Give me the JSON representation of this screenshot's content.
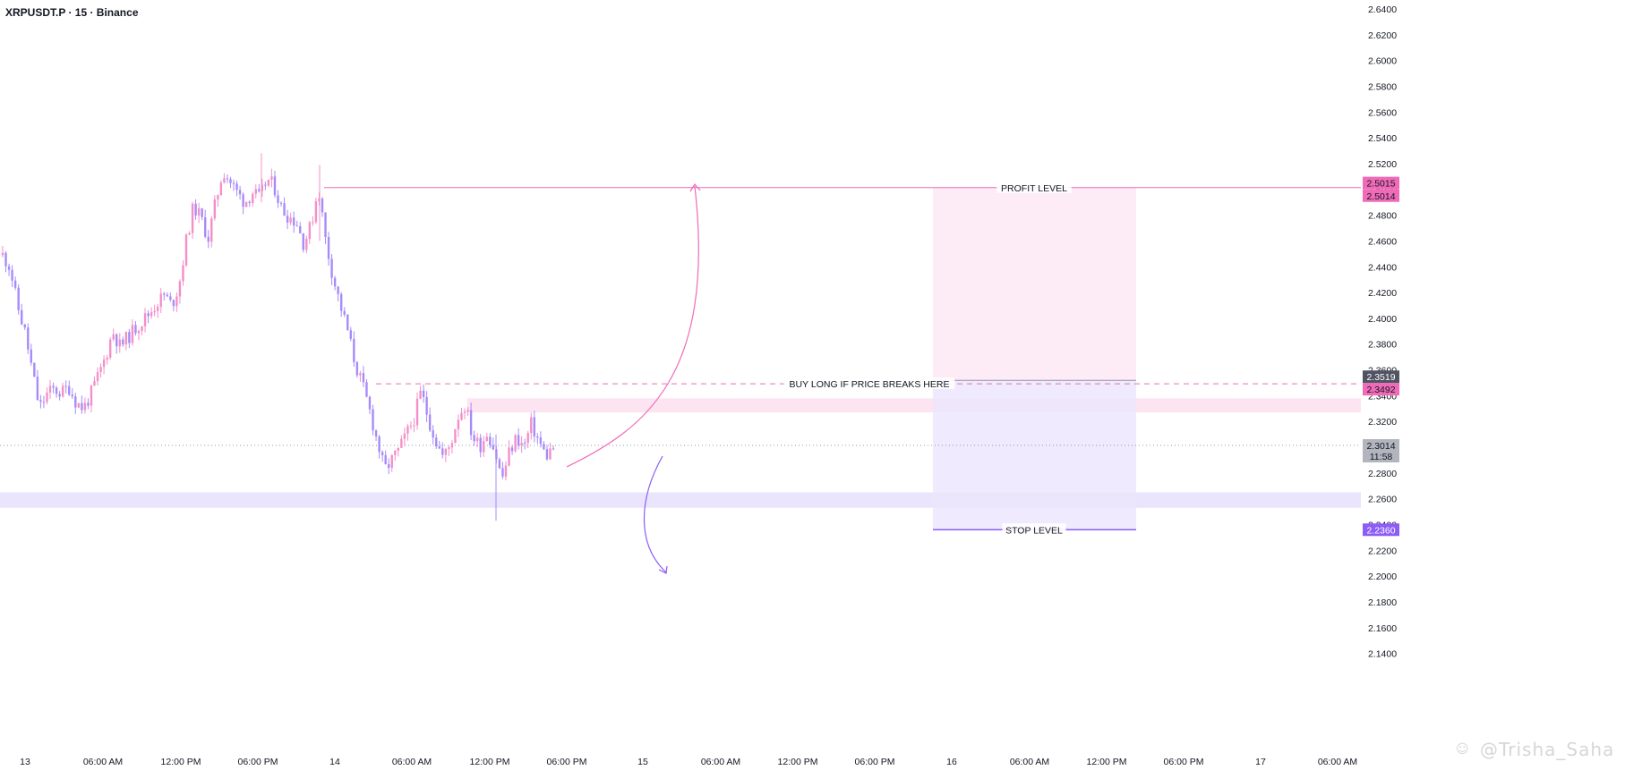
{
  "header": {
    "title": "XRPUSDT.P · 15 · Binance"
  },
  "watermark": {
    "text": "@Trisha_Saha",
    "icon": "community-icon"
  },
  "chart_data": {
    "type": "candlestick",
    "symbol": "XRPUSDT.P",
    "interval": "15",
    "exchange": "Binance",
    "ylim": [
      2.13,
      2.65
    ],
    "y_ticks": [
      "2.6400",
      "2.6200",
      "2.6000",
      "2.5800",
      "2.5600",
      "2.5400",
      "2.5200",
      "2.5000",
      "2.4800",
      "2.4600",
      "2.4400",
      "2.4200",
      "2.4000",
      "2.3800",
      "2.3600",
      "2.3400",
      "2.3200",
      "2.3000",
      "2.2800",
      "2.2600",
      "2.2400",
      "2.2200",
      "2.2000",
      "2.1800",
      "2.1600",
      "2.1400"
    ],
    "x_ticks": [
      "13",
      "06:00 AM",
      "12:00 PM",
      "06:00 PM",
      "14",
      "06:00 AM",
      "12:00 PM",
      "06:00 PM",
      "15",
      "06:00 AM",
      "12:00 PM",
      "06:00 PM",
      "16",
      "06:00 AM",
      "12:00 PM",
      "06:00 PM",
      "17",
      "06:00 AM"
    ],
    "price_path": [
      2.449,
      2.44,
      2.41,
      2.39,
      2.36,
      2.33,
      2.341,
      2.345,
      2.342,
      2.347,
      2.335,
      2.33,
      2.341,
      2.355,
      2.37,
      2.39,
      2.378,
      2.385,
      2.392,
      2.398,
      2.404,
      2.412,
      2.418,
      2.41,
      2.425,
      2.46,
      2.487,
      2.478,
      2.462,
      2.49,
      2.515,
      2.506,
      2.497,
      2.49,
      2.498,
      2.493,
      2.508,
      2.502,
      2.485,
      2.479,
      2.475,
      2.458,
      2.472,
      2.502,
      2.46,
      2.432,
      2.41,
      2.39,
      2.365,
      2.348,
      2.328,
      2.305,
      2.282,
      2.29,
      2.298,
      2.31,
      2.322,
      2.343,
      2.322,
      2.305,
      2.292,
      2.302,
      2.324,
      2.333,
      2.308,
      2.301,
      2.312,
      2.298,
      2.275,
      2.296,
      2.308,
      2.3,
      2.318,
      2.305,
      2.293,
      2.3
    ],
    "current_price": "2.3014",
    "countdown": "11:58",
    "levels": {
      "profit": {
        "label": "PROFIT LEVEL",
        "price": 2.5014,
        "tag": "2.5014"
      },
      "profit_alt": {
        "price": 2.5015,
        "tag": "2.5015"
      },
      "entry": {
        "label": "BUY LONG IF PRICE BREAKS HERE",
        "price": 2.3492,
        "tag": "2.3492"
      },
      "entry_alt": {
        "price": 2.3519,
        "tag": "2.3519"
      },
      "stop": {
        "label": "STOP LEVEL",
        "price": 2.236,
        "tag": "2.2360"
      }
    },
    "zones": [
      {
        "name": "resistance-zone",
        "from": 2.327,
        "to": 2.338
      },
      {
        "name": "support-zone",
        "from": 2.253,
        "to": 2.265
      }
    ],
    "colors": {
      "up": "#f48fc8",
      "down": "#a78bfa",
      "profit": "#f06ab7",
      "stop": "#8b5cf6",
      "profit_zone": "#fde7f3",
      "stop_zone": "#ece6fd",
      "resistance_zone": "#fce4f1",
      "support_zone": "#ebe4fd",
      "price_tag": "#b2b5be",
      "entry_tag_dark": "#505462"
    },
    "grid": false
  }
}
